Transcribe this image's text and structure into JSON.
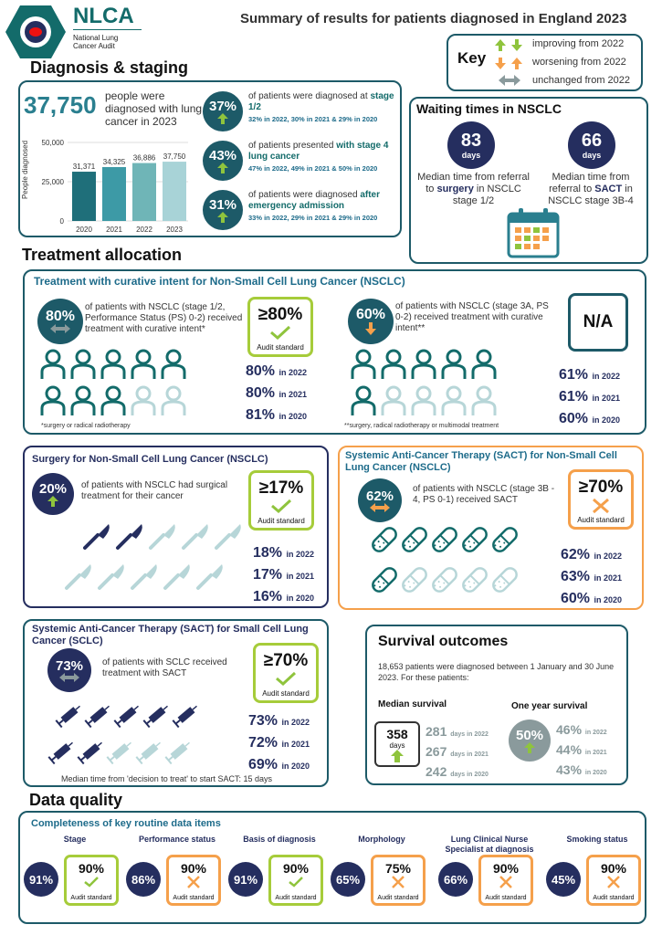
{
  "header": {
    "logo_text": "NLCA",
    "logo_sub": "National Lung Cancer Audit",
    "title": "Summary of results for patients diagnosed in England 2023"
  },
  "key": {
    "title": "Key",
    "improving": "improving from 2022",
    "worsening": "worsening from 2022",
    "unchanged": "unchanged from 2022"
  },
  "diagnosis": {
    "heading": "Diagnosis & staging",
    "count": "37,750",
    "count_text": "people were diagnosed with lung cancer in 2023",
    "chart_data": {
      "type": "bar",
      "categories": [
        "2020",
        "2021",
        "2022",
        "2023"
      ],
      "values": [
        31371,
        34325,
        36886,
        37750
      ],
      "value_labels": [
        "31,371",
        "34,325",
        "36,886",
        "37,750"
      ],
      "ylabel": "People diagnosed",
      "ylim": [
        0,
        50000
      ],
      "yticks": [
        "50,000",
        "25,000",
        "0"
      ],
      "colors": [
        "#1f6f7a",
        "#3d9aa6",
        "#6fb5b7",
        "#a8d3d7"
      ]
    },
    "items": [
      {
        "pct": "37%",
        "text": "of patients were diagnosed at",
        "bold": "stage 1/2",
        "sub": "32% in 2022, 30% in 2021 & 29% in 2020",
        "trend": "improving"
      },
      {
        "pct": "43%",
        "text": "of patients presented",
        "bold": "with stage 4 lung cancer",
        "sub": "47% in 2022, 49% in 2021 & 50% in 2020",
        "trend": "improving"
      },
      {
        "pct": "31%",
        "text": "of patients were diagnosed",
        "bold": "after emergency admission",
        "sub": "33% in 2022, 29% in 2021 & 29% in 2020",
        "trend": "improving"
      }
    ]
  },
  "waiting": {
    "heading": "Waiting times in NSCLC",
    "a_num": "83",
    "a_unit": "days",
    "a_text1": "Median time from referral to",
    "a_bold": "surgery",
    "a_text2": "in NSCLC stage 1/2",
    "b_num": "66",
    "b_unit": "days",
    "b_text1": "Median time from referral to",
    "b_bold": "SACT",
    "b_text2": "in NSCLC stage 3B-4"
  },
  "treatment": {
    "heading": "Treatment allocation",
    "curative_title": "Treatment with curative intent for Non-Small Cell Lung Cancer (NSCLC)",
    "left": {
      "pct": "80%",
      "text": "of patients with NSCLC (stage 1/2, Performance Status (PS) 0-2) received treatment with curative intent*",
      "standard": "≥80%",
      "standard_label": "Audit standard",
      "trend": [
        "80%",
        "in 2022",
        "80%",
        "in 2021",
        "81%",
        "in 2020"
      ],
      "note": "*surgery or radical radiotherapy",
      "filled": 8
    },
    "right": {
      "pct": "60%",
      "text": "of patients with NSCLC (stage 3A, PS 0-2) received treatment with curative intent**",
      "standard": "N/A",
      "trend": [
        "61%",
        "in 2022",
        "61%",
        "in 2021",
        "60%",
        "in 2020"
      ],
      "note": "**surgery, radical radiotherapy or multimodal treatment",
      "filled": 6
    }
  },
  "surgery": {
    "title": "Surgery for Non-Small Cell Lung Cancer (NSCLC)",
    "pct": "20%",
    "text": "of patients with NSCLC had surgical treatment for their cancer",
    "standard": "≥17%",
    "standard_label": "Audit standard",
    "trend": [
      "18%",
      "in 2022",
      "17%",
      "in 2021",
      "16%",
      "in 2020"
    ],
    "filled": 2
  },
  "sact_nsclc": {
    "title": "Systemic Anti-Cancer Therapy (SACT) for Non-Small Cell Lung Cancer (NSCLC)",
    "pct": "62%",
    "text": "of patients with NSCLC (stage 3B - 4, PS 0-1) received SACT",
    "standard": "≥70%",
    "standard_label": "Audit standard",
    "trend": [
      "62%",
      "in 2022",
      "63%",
      "in 2021",
      "60%",
      "in 2020"
    ],
    "filled": 6
  },
  "sact_sclc": {
    "title": "Systemic Anti-Cancer Therapy (SACT) for Small Cell Lung Cancer (SCLC)",
    "pct": "73%",
    "text": "of patients with SCLC received treatment with SACT",
    "standard": "≥70%",
    "standard_label": "Audit standard",
    "trend": [
      "73%",
      "in 2022",
      "72%",
      "in 2021",
      "69%",
      "in 2020"
    ],
    "filled": 7,
    "median": "Median time from 'decision to treat' to start SACT: 15 days"
  },
  "survival": {
    "heading": "Survival outcomes",
    "intro": "18,653 patients were diagnosed between 1 January and 30 June 2023. For these patients:",
    "median_label": "Median survival",
    "median_val": "358",
    "median_unit": "days",
    "median_trend": [
      "281",
      "days in 2022",
      "267",
      "days in 2021",
      "242",
      "days in 2020"
    ],
    "year_label": "One year survival",
    "year_val": "50%",
    "year_trend": [
      "46%",
      "in 2022",
      "44%",
      "in 2021",
      "43%",
      "in 2020"
    ]
  },
  "dq": {
    "heading": "Data quality",
    "title": "Completeness of key routine data items",
    "items": [
      {
        "label": "Stage",
        "pct": "91%",
        "std": "90%",
        "ok": true
      },
      {
        "label": "Performance status",
        "pct": "86%",
        "std": "90%",
        "ok": false
      },
      {
        "label": "Basis of diagnosis",
        "pct": "91%",
        "std": "90%",
        "ok": true
      },
      {
        "label": "Morphology",
        "pct": "65%",
        "std": "75%",
        "ok": false
      },
      {
        "label": "Lung Clinical Nurse Specialist at diagnosis",
        "pct": "66%",
        "std": "90%",
        "ok": false
      },
      {
        "label": "Smoking status",
        "pct": "45%",
        "std": "90%",
        "ok": false
      }
    ],
    "std_label": "Audit standard"
  }
}
